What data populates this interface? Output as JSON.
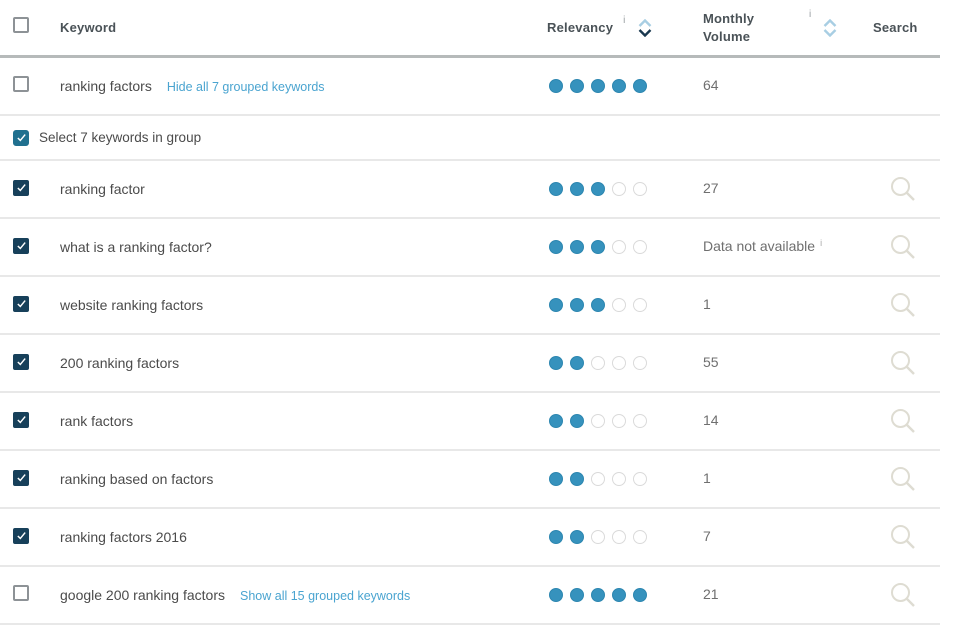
{
  "glyphs": {
    "info": "i"
  },
  "header": {
    "select_all_checked": false,
    "columns": {
      "keyword": "Keyword",
      "relevancy": "Relevancy",
      "monthly_volume": "Monthly Volume",
      "search": "Search"
    },
    "sort": {
      "relevancy": "desc",
      "monthly_volume": "none"
    },
    "relevancy_max": 5
  },
  "rows": [
    {
      "type": "keyword",
      "checked": false,
      "keyword": "ranking factors",
      "link": "Hide all 7 grouped keywords",
      "relevancy": 5,
      "volume": "64",
      "volume_info": false,
      "search": false
    },
    {
      "type": "group-select",
      "checked": true,
      "label": "Select 7 keywords in group"
    },
    {
      "type": "keyword",
      "checked": true,
      "keyword": "ranking factor",
      "link": null,
      "relevancy": 3,
      "volume": "27",
      "volume_info": false,
      "search": true
    },
    {
      "type": "keyword",
      "checked": true,
      "keyword": "what is a ranking factor?",
      "link": null,
      "relevancy": 3,
      "volume": "Data not available",
      "volume_info": true,
      "search": true
    },
    {
      "type": "keyword",
      "checked": true,
      "keyword": "website ranking factors",
      "link": null,
      "relevancy": 3,
      "volume": "1",
      "volume_info": false,
      "search": true
    },
    {
      "type": "keyword",
      "checked": true,
      "keyword": "200 ranking factors",
      "link": null,
      "relevancy": 2,
      "volume": "55",
      "volume_info": false,
      "search": true
    },
    {
      "type": "keyword",
      "checked": true,
      "keyword": "rank factors",
      "link": null,
      "relevancy": 2,
      "volume": "14",
      "volume_info": false,
      "search": true
    },
    {
      "type": "keyword",
      "checked": true,
      "keyword": "ranking based on factors",
      "link": null,
      "relevancy": 2,
      "volume": "1",
      "volume_info": false,
      "search": true
    },
    {
      "type": "keyword",
      "checked": true,
      "keyword": "ranking factors 2016",
      "link": null,
      "relevancy": 2,
      "volume": "7",
      "volume_info": false,
      "search": true
    },
    {
      "type": "keyword",
      "checked": false,
      "keyword": "google 200 ranking factors",
      "link": "Show all 15 grouped keywords",
      "relevancy": 5,
      "volume": "21",
      "volume_info": false,
      "search": true
    }
  ],
  "colors": {
    "dot_filled": "#3692bd",
    "link_blue": "#4aa4d0",
    "checkbox_checked": "#17405a",
    "group_checkbox_checked": "#20708f",
    "chevron_light": "#a8cee3",
    "chevron_dark": "#19384f",
    "header_border": "#b6baba",
    "row_border": "#e8e8e8",
    "search_icon_gray": "#dedcd2",
    "text_dark": "#4b4b4b",
    "text_gray": "#6f6f6f"
  }
}
